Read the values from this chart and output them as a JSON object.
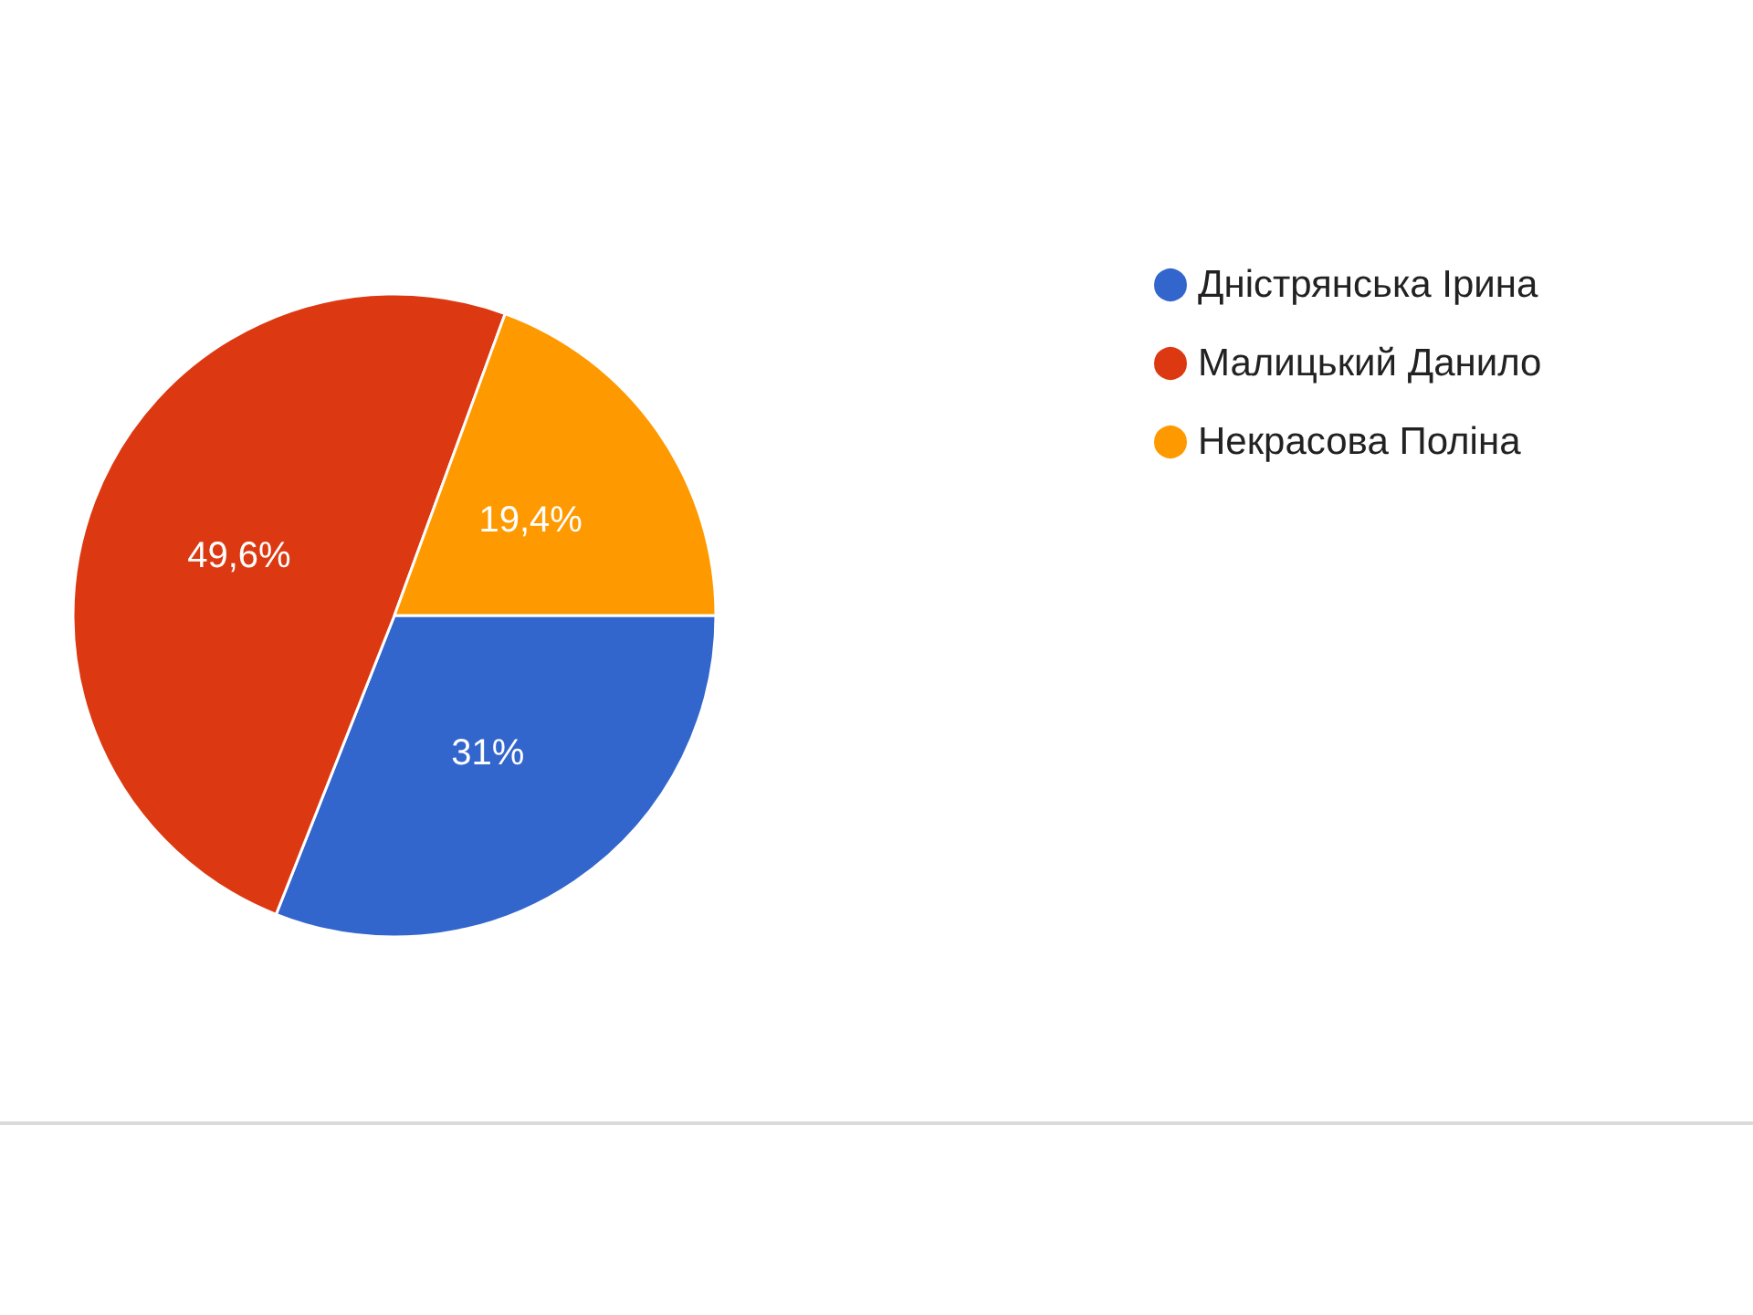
{
  "chart_data": {
    "type": "pie",
    "categories": [
      "Дністрянська Ірина",
      "Малицький Данило",
      "Некрасова Поліна"
    ],
    "values": [
      31,
      49.6,
      19.4
    ],
    "colors": [
      "#3366cc",
      "#dc3912",
      "#ff9900"
    ],
    "value_labels": [
      "31%",
      "49,6%",
      "19,4%"
    ],
    "legend": "top right"
  }
}
